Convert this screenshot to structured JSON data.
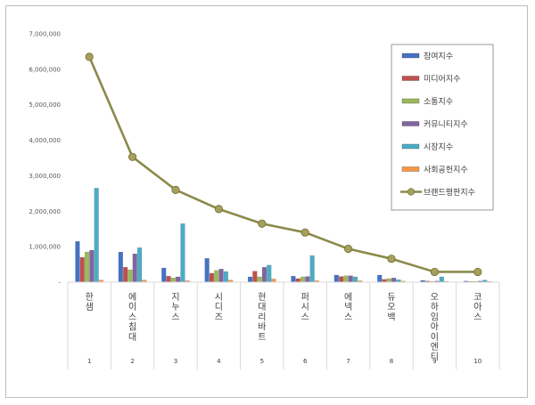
{
  "chart_data": {
    "type": "bar",
    "categories": [
      "한샘",
      "에이스침대",
      "지누스",
      "시디즈",
      "현대리바트",
      "퍼시스",
      "에넥스",
      "듀오백",
      "오하임아이엔티",
      "코아스"
    ],
    "ranks": [
      "1",
      "2",
      "3",
      "4",
      "5",
      "6",
      "7",
      "8",
      "9",
      "10"
    ],
    "ylim": [
      0,
      7000000
    ],
    "yticks": [
      0,
      1000000,
      2000000,
      3000000,
      4000000,
      5000000,
      6000000,
      7000000
    ],
    "ytick_labels": [
      "-",
      "1,000,000",
      "2,000,000",
      "3,000,000",
      "4,000,000",
      "5,000,000",
      "6,000,000",
      "7,000,000"
    ],
    "grid": false,
    "legend_position": "right",
    "series": [
      {
        "name": "참여지수",
        "color": "#4472c4",
        "values": [
          1150000,
          850000,
          400000,
          670000,
          150000,
          170000,
          200000,
          200000,
          50000,
          30000
        ]
      },
      {
        "name": "미디어지수",
        "color": "#c0504d",
        "values": [
          700000,
          420000,
          170000,
          250000,
          310000,
          100000,
          160000,
          80000,
          30000,
          20000
        ]
      },
      {
        "name": "소통지수",
        "color": "#9bbb59",
        "values": [
          850000,
          350000,
          120000,
          330000,
          150000,
          150000,
          180000,
          100000,
          20000,
          20000
        ]
      },
      {
        "name": "커뮤니티지수",
        "color": "#8064a2",
        "values": [
          900000,
          800000,
          150000,
          370000,
          420000,
          160000,
          180000,
          120000,
          30000,
          30000
        ]
      },
      {
        "name": "시장지수",
        "color": "#4bacc6",
        "values": [
          2650000,
          970000,
          1650000,
          300000,
          480000,
          750000,
          150000,
          70000,
          150000,
          60000
        ]
      },
      {
        "name": "사회공헌지수",
        "color": "#f79646",
        "values": [
          60000,
          60000,
          40000,
          60000,
          90000,
          40000,
          40000,
          30000,
          20000,
          20000
        ]
      }
    ],
    "line_series": {
      "name": "브랜드평판지수",
      "color": "#8b8a4a",
      "values": [
        6350000,
        3530000,
        2600000,
        2060000,
        1650000,
        1400000,
        940000,
        660000,
        290000,
        290000
      ]
    }
  }
}
